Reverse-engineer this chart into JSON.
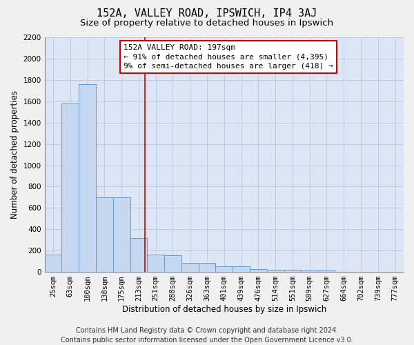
{
  "title": "152A, VALLEY ROAD, IPSWICH, IP4 3AJ",
  "subtitle": "Size of property relative to detached houses in Ipswich",
  "xlabel": "Distribution of detached houses by size in Ipswich",
  "ylabel": "Number of detached properties",
  "bin_labels": [
    "25sqm",
    "63sqm",
    "100sqm",
    "138sqm",
    "175sqm",
    "213sqm",
    "251sqm",
    "288sqm",
    "326sqm",
    "363sqm",
    "401sqm",
    "439sqm",
    "476sqm",
    "514sqm",
    "551sqm",
    "589sqm",
    "627sqm",
    "664sqm",
    "702sqm",
    "739sqm",
    "777sqm"
  ],
  "bar_heights": [
    160,
    1580,
    1760,
    700,
    700,
    320,
    160,
    155,
    85,
    85,
    50,
    50,
    25,
    20,
    20,
    15,
    15,
    0,
    0,
    0,
    0
  ],
  "bar_color": "#c5d8f0",
  "bar_edge_color": "#6699cc",
  "background_color": "#dce6f5",
  "grid_color": "#b8c8dc",
  "red_line_x": 5.35,
  "annotation_line1": "152A VALLEY ROAD: 197sqm",
  "annotation_line2": "← 91% of detached houses are smaller (4,395)",
  "annotation_line3": "9% of semi-detached houses are larger (418) →",
  "annotation_box_color": "#ffffff",
  "annotation_box_edge": "#cc0000",
  "ylim": [
    0,
    2200
  ],
  "yticks": [
    0,
    200,
    400,
    600,
    800,
    1000,
    1200,
    1400,
    1600,
    1800,
    2000,
    2200
  ],
  "footer_line1": "Contains HM Land Registry data © Crown copyright and database right 2024.",
  "footer_line2": "Contains public sector information licensed under the Open Government Licence v3.0.",
  "title_fontsize": 11,
  "subtitle_fontsize": 9.5,
  "axis_label_fontsize": 8.5,
  "tick_fontsize": 7.5,
  "annotation_fontsize": 8,
  "footer_fontsize": 7
}
